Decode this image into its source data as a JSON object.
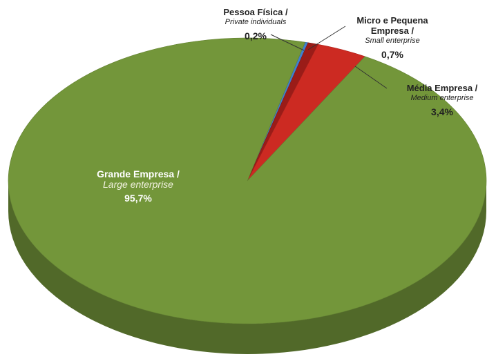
{
  "chart_data": {
    "type": "pie3d",
    "categories": [
      "Pessoa Física /",
      "Micro e Pequena Empresa /",
      "Média Empresa /",
      "Grande Empresa /"
    ],
    "categories_en": [
      "Private individuals",
      "Small enterprise",
      "Medium enterprise",
      "Large enterprise"
    ],
    "values": [
      0.2,
      0.7,
      3.4,
      95.7
    ],
    "value_labels": [
      "0,2%",
      "0,7%",
      "3,4%",
      "95,7%"
    ],
    "colors": [
      "#3f7fcf",
      "#9a1c18",
      "#cc2a22",
      "#73963a"
    ]
  }
}
